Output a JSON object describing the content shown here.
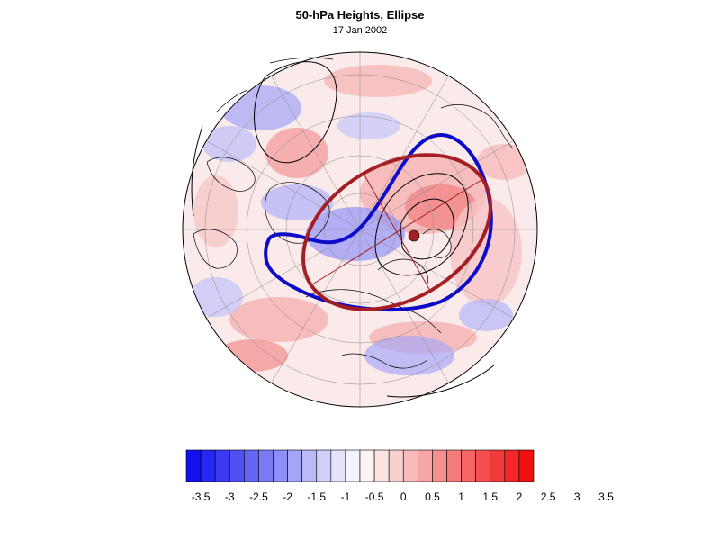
{
  "title": "50-hPa Heights, Ellipse",
  "subtitle": "17 Jan 2002",
  "projection": "north polar stereographic (hemisphere)",
  "overlays": {
    "ellipse_color": "#a31f24",
    "vortex_edge_color": "#0b0bc8",
    "contour_color": "#000000",
    "coastline_color": "#000000"
  },
  "colorbar": {
    "tick_labels": [
      "-3.5",
      "-3",
      "-2.5",
      "-2",
      "-1.5",
      "-1",
      "-0.5",
      "0",
      "0.5",
      "1",
      "1.5",
      "2",
      "2.5",
      "3",
      "3.5"
    ],
    "colors": [
      "#1010f0",
      "#2727f2",
      "#3a3af3",
      "#5050f4",
      "#6565f5",
      "#7a7af6",
      "#8f8ff7",
      "#a5a5f8",
      "#babaf9",
      "#cfcffa",
      "#e3e3fb",
      "#f3f3fd",
      "#fdf3f3",
      "#fbe3e3",
      "#facfcf",
      "#f9baba",
      "#f8a5a5",
      "#f78f8f",
      "#f67a7a",
      "#f56565",
      "#f45050",
      "#f33a3a",
      "#f22727",
      "#f01010"
    ]
  }
}
